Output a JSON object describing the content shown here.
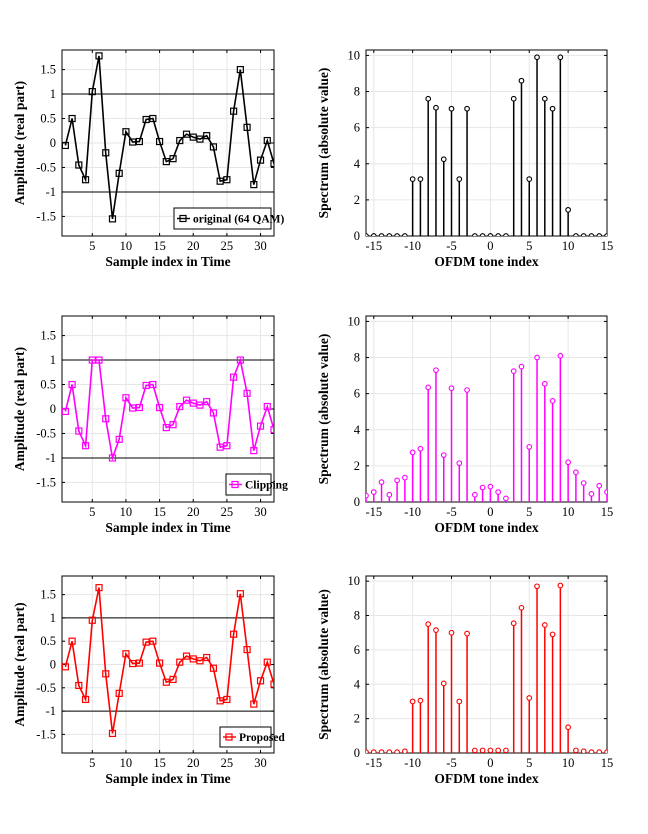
{
  "chart_data": [
    {
      "id": "time-original",
      "type": "line",
      "color": "#000000",
      "marker": "square",
      "legend": "original (64 QAM)",
      "legend_position": "bottom-right",
      "xlabel": "Sample index in Time",
      "ylabel": "Amplitude (real part)",
      "xlim": [
        0.5,
        32
      ],
      "ylim": [
        -1.9,
        1.9
      ],
      "xticks": [
        5,
        10,
        15,
        20,
        25,
        30
      ],
      "yticks": [
        -1.5,
        -1,
        -0.5,
        0,
        0.5,
        1,
        1.5
      ],
      "ytick_labels": [
        "-1.5",
        "-1",
        "-0.5",
        "0",
        "0.5",
        "1",
        "1.5"
      ],
      "threshold_lines": [
        1,
        -1
      ],
      "x": [
        1,
        2,
        3,
        4,
        5,
        6,
        7,
        8,
        9,
        10,
        11,
        12,
        13,
        14,
        15,
        16,
        17,
        18,
        19,
        20,
        21,
        22,
        23,
        24,
        25,
        26,
        27,
        28,
        29,
        30,
        31,
        32
      ],
      "values": [
        -0.05,
        0.5,
        -0.45,
        -0.75,
        1.05,
        1.78,
        -0.2,
        -1.55,
        -0.62,
        0.23,
        0.02,
        0.03,
        0.48,
        0.5,
        0.03,
        -0.38,
        -0.32,
        0.05,
        0.18,
        0.12,
        0.08,
        0.15,
        -0.08,
        -0.78,
        -0.75,
        0.65,
        1.5,
        0.32,
        -0.85,
        -0.35,
        0.05,
        -0.42
      ]
    },
    {
      "id": "spec-original",
      "type": "stem",
      "color": "#000000",
      "xlabel": "OFDM tone index",
      "ylabel": "Spectrum (absolute value)",
      "xlim": [
        -16,
        15
      ],
      "ylim": [
        0,
        10.3
      ],
      "xticks": [
        -15,
        -10,
        -5,
        0,
        5,
        10,
        15
      ],
      "xtick_labels": [
        "-15",
        "-10",
        "-5",
        "0",
        "5",
        "10",
        "15"
      ],
      "yticks": [
        0,
        2,
        4,
        6,
        8,
        10
      ],
      "ytick_labels": [
        "0",
        "2",
        "4",
        "6",
        "8",
        "10"
      ],
      "x": [
        -16,
        -15,
        -14,
        -13,
        -12,
        -11,
        -10,
        -9,
        -8,
        -7,
        -6,
        -5,
        -4,
        -3,
        -2,
        -1,
        0,
        1,
        2,
        3,
        4,
        5,
        6,
        7,
        8,
        9,
        10,
        11,
        12,
        13,
        14,
        15
      ],
      "values": [
        0,
        0,
        0,
        0,
        0,
        0,
        3.15,
        3.15,
        7.6,
        7.1,
        4.25,
        7.05,
        3.15,
        7.05,
        0,
        0,
        0,
        0,
        0,
        7.6,
        8.6,
        3.15,
        9.9,
        7.6,
        7.05,
        9.9,
        1.45,
        0,
        0,
        0,
        0,
        0
      ]
    },
    {
      "id": "time-clipping",
      "type": "line",
      "color": "#ff00ff",
      "marker": "square",
      "legend": "Clipping",
      "legend_position": "bottom-right",
      "xlabel": "Sample index in Time",
      "ylabel": "Amplitude (real part)",
      "xlim": [
        0.5,
        32
      ],
      "ylim": [
        -1.9,
        1.9
      ],
      "xticks": [
        5,
        10,
        15,
        20,
        25,
        30
      ],
      "yticks": [
        -1.5,
        -1,
        -0.5,
        0,
        0.5,
        1,
        1.5
      ],
      "ytick_labels": [
        "-1.5",
        "-1",
        "-0.5",
        "0",
        "0.5",
        "1",
        "1.5"
      ],
      "threshold_lines": [
        1,
        -1
      ],
      "x": [
        1,
        2,
        3,
        4,
        5,
        6,
        7,
        8,
        9,
        10,
        11,
        12,
        13,
        14,
        15,
        16,
        17,
        18,
        19,
        20,
        21,
        22,
        23,
        24,
        25,
        26,
        27,
        28,
        29,
        30,
        31,
        32
      ],
      "values": [
        -0.05,
        0.5,
        -0.45,
        -0.75,
        1.0,
        1.0,
        -0.2,
        -1.0,
        -0.62,
        0.23,
        0.02,
        0.03,
        0.48,
        0.5,
        0.03,
        -0.38,
        -0.32,
        0.05,
        0.18,
        0.12,
        0.08,
        0.15,
        -0.08,
        -0.78,
        -0.75,
        0.65,
        1.0,
        0.32,
        -0.85,
        -0.35,
        0.05,
        -0.42
      ]
    },
    {
      "id": "spec-clipping",
      "type": "stem",
      "color": "#ff00ff",
      "xlabel": "OFDM tone index",
      "ylabel": "Spectrum (absolute value)",
      "xlim": [
        -16,
        15
      ],
      "ylim": [
        0,
        10.3
      ],
      "xticks": [
        -15,
        -10,
        -5,
        0,
        5,
        10,
        15
      ],
      "xtick_labels": [
        "-15",
        "-10",
        "-5",
        "0",
        "5",
        "10",
        "15"
      ],
      "yticks": [
        0,
        2,
        4,
        6,
        8,
        10
      ],
      "ytick_labels": [
        "0",
        "2",
        "4",
        "6",
        "8",
        "10"
      ],
      "x": [
        -16,
        -15,
        -14,
        -13,
        -12,
        -11,
        -10,
        -9,
        -8,
        -7,
        -6,
        -5,
        -4,
        -3,
        -2,
        -1,
        0,
        1,
        2,
        3,
        4,
        5,
        6,
        7,
        8,
        9,
        10,
        11,
        12,
        13,
        14,
        15
      ],
      "values": [
        0.35,
        0.55,
        1.1,
        0.4,
        1.2,
        1.35,
        2.75,
        2.95,
        6.35,
        7.3,
        2.6,
        6.3,
        2.15,
        6.2,
        0.4,
        0.8,
        0.85,
        0.55,
        0.2,
        7.25,
        7.5,
        3.05,
        8.0,
        6.55,
        5.6,
        8.1,
        2.2,
        1.65,
        1.05,
        0.45,
        0.9,
        0.55
      ]
    },
    {
      "id": "time-proposed",
      "type": "line",
      "color": "#ff0000",
      "marker": "square",
      "legend": "Proposed",
      "legend_position": "bottom-right",
      "xlabel": "Sample index in Time",
      "ylabel": "Amplitude (real part)",
      "xlim": [
        0.5,
        32
      ],
      "ylim": [
        -1.9,
        1.9
      ],
      "xticks": [
        5,
        10,
        15,
        20,
        25,
        30
      ],
      "yticks": [
        -1.5,
        -1,
        -0.5,
        0,
        0.5,
        1,
        1.5
      ],
      "ytick_labels": [
        "-1.5",
        "-1",
        "-0.5",
        "0",
        "0.5",
        "1",
        "1.5"
      ],
      "threshold_lines": [
        1,
        -1
      ],
      "x": [
        1,
        2,
        3,
        4,
        5,
        6,
        7,
        8,
        9,
        10,
        11,
        12,
        13,
        14,
        15,
        16,
        17,
        18,
        19,
        20,
        21,
        22,
        23,
        24,
        25,
        26,
        27,
        28,
        29,
        30,
        31,
        32
      ],
      "values": [
        -0.05,
        0.5,
        -0.45,
        -0.75,
        0.95,
        1.65,
        -0.2,
        -1.48,
        -0.62,
        0.23,
        0.02,
        0.03,
        0.48,
        0.5,
        0.03,
        -0.38,
        -0.32,
        0.05,
        0.18,
        0.12,
        0.08,
        0.15,
        -0.08,
        -0.78,
        -0.75,
        0.65,
        1.52,
        0.32,
        -0.85,
        -0.35,
        0.05,
        -0.42
      ]
    },
    {
      "id": "spec-proposed",
      "type": "stem",
      "color": "#ff0000",
      "xlabel": "OFDM tone index",
      "ylabel": "Spectrum (absolute value)",
      "xlim": [
        -16,
        15
      ],
      "ylim": [
        0,
        10.3
      ],
      "xticks": [
        -15,
        -10,
        -5,
        0,
        5,
        10,
        15
      ],
      "xtick_labels": [
        "-15",
        "-10",
        "-5",
        "0",
        "5",
        "10",
        "15"
      ],
      "yticks": [
        0,
        2,
        4,
        6,
        8,
        10
      ],
      "ytick_labels": [
        "0",
        "2",
        "4",
        "6",
        "8",
        "10"
      ],
      "x": [
        -16,
        -15,
        -14,
        -13,
        -12,
        -11,
        -10,
        -9,
        -8,
        -7,
        -6,
        -5,
        -4,
        -3,
        -2,
        -1,
        0,
        1,
        2,
        3,
        4,
        5,
        6,
        7,
        8,
        9,
        10,
        11,
        12,
        13,
        14,
        15
      ],
      "values": [
        0.05,
        0.05,
        0.05,
        0.05,
        0.05,
        0.1,
        3.0,
        3.05,
        7.5,
        7.15,
        4.05,
        7.0,
        3.0,
        6.95,
        0.15,
        0.15,
        0.15,
        0.15,
        0.15,
        7.55,
        8.45,
        3.2,
        9.7,
        7.45,
        6.9,
        9.75,
        1.5,
        0.15,
        0.1,
        0.05,
        0.05,
        0.05
      ]
    }
  ]
}
